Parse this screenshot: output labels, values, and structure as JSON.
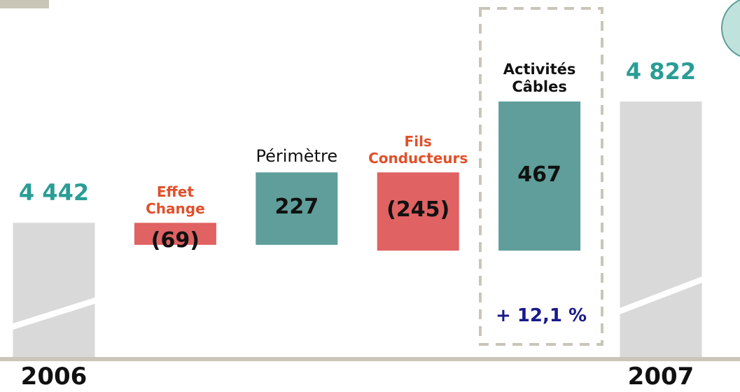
{
  "chart_data": {
    "type": "waterfall",
    "categories": [
      "2006",
      "Effet Change",
      "Périmètre",
      "Fils Conducteurs",
      "Activités Câbles",
      "2007"
    ],
    "values": [
      4442,
      -69,
      227,
      -245,
      467,
      4822
    ],
    "value_labels": [
      "4 442",
      "(69)",
      "227",
      "(245)",
      "467",
      "4 822"
    ],
    "colors": {
      "increase": "#5f9e9a",
      "decrease": "#e06262",
      "total": "#d9d9d9"
    },
    "annotation": "+ 12,1 %"
  }
}
